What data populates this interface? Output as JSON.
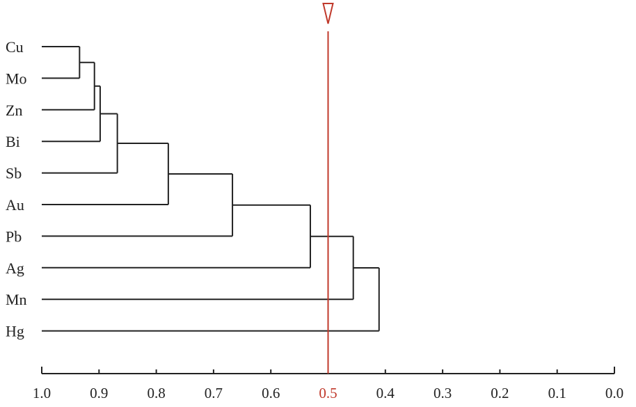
{
  "chart_data": {
    "type": "dendrogram",
    "title": "",
    "xlabel": "",
    "ylabel": "",
    "xlim": [
      1.0,
      0.0
    ],
    "x_ticks": [
      "1.0",
      "0.9",
      "0.8",
      "0.7",
      "0.6",
      "0.5",
      "0.4",
      "0.3",
      "0.2",
      "0.1",
      "0.0"
    ],
    "x_tick_values": [
      1.0,
      0.9,
      0.8,
      0.7,
      0.6,
      0.5,
      0.4,
      0.3,
      0.2,
      0.1,
      0.0
    ],
    "leaves": [
      "Cu",
      "Mo",
      "Zn",
      "Bi",
      "Sb",
      "Au",
      "Pb",
      "Ag",
      "Mn",
      "Hg"
    ],
    "merges": [
      {
        "left": "Cu",
        "right": "Mo",
        "similarity": 0.934
      },
      {
        "left": "Cu+Mo",
        "right": "Zn",
        "similarity": 0.908
      },
      {
        "left": "Cu+Mo+Zn",
        "right": "Bi",
        "similarity": 0.898
      },
      {
        "left": "Cu+Mo+Zn+Bi",
        "right": "Sb",
        "similarity": 0.868
      },
      {
        "left": "Cu+Mo+Zn+Bi+Sb",
        "right": "Au",
        "similarity": 0.779
      },
      {
        "left": "Cu+Mo+Zn+Bi+Sb+Au",
        "right": "Pb",
        "similarity": 0.667
      },
      {
        "left": "Cu+Mo+Zn+Bi+Sb+Au+Pb",
        "right": "Ag",
        "similarity": 0.531
      },
      {
        "left": "Cu+Mo+Zn+Bi+Sb+Au+Pb+Ag",
        "right": "Mn",
        "similarity": 0.456
      },
      {
        "left": "Cu+Mo+Zn+Bi+Sb+Au+Pb+Ag+Mn",
        "right": "Hg",
        "similarity": 0.411
      }
    ],
    "threshold": 0.5,
    "threshold_tick_index": 5,
    "colors": {
      "tree": "#222222",
      "threshold": "#c0392b"
    }
  }
}
